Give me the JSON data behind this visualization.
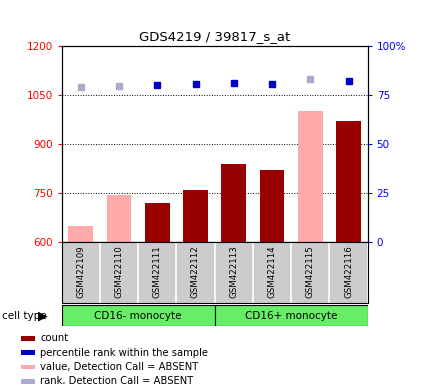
{
  "title": "GDS4219 / 39817_s_at",
  "samples": [
    "GSM422109",
    "GSM422110",
    "GSM422111",
    "GSM422112",
    "GSM422113",
    "GSM422114",
    "GSM422115",
    "GSM422116"
  ],
  "cell_type_groups": [
    {
      "label": "CD16- monocyte",
      "start": 0,
      "end": 3
    },
    {
      "label": "CD16+ monocyte",
      "start": 4,
      "end": 7
    }
  ],
  "values": [
    650,
    745,
    720,
    760,
    840,
    820,
    1000,
    970
  ],
  "absent_flags": [
    true,
    true,
    false,
    false,
    false,
    false,
    true,
    false
  ],
  "percentile_ranks": [
    79,
    79.5,
    80,
    80.5,
    81,
    80.8,
    83,
    82
  ],
  "absent_rank_flags": [
    true,
    true,
    false,
    false,
    false,
    false,
    true,
    false
  ],
  "ylim_left": [
    600,
    1200
  ],
  "ylim_right": [
    0,
    100
  ],
  "yticks_left": [
    600,
    750,
    900,
    1050,
    1200
  ],
  "yticks_right": [
    0,
    25,
    50,
    75,
    100
  ],
  "ytick_labels_right": [
    "0",
    "25",
    "50",
    "75",
    "100%"
  ],
  "bar_color_present": "#990000",
  "bar_color_absent": "#ffaaaa",
  "dot_color_present": "#0000cc",
  "dot_color_absent": "#aaaacc",
  "cell_type_bg": "#66ee66",
  "sample_bg": "#cccccc",
  "legend_items": [
    {
      "label": "count",
      "color": "#990000"
    },
    {
      "label": "percentile rank within the sample",
      "color": "#0000cc"
    },
    {
      "label": "value, Detection Call = ABSENT",
      "color": "#ffaaaa"
    },
    {
      "label": "rank, Detection Call = ABSENT",
      "color": "#aaaacc"
    }
  ]
}
